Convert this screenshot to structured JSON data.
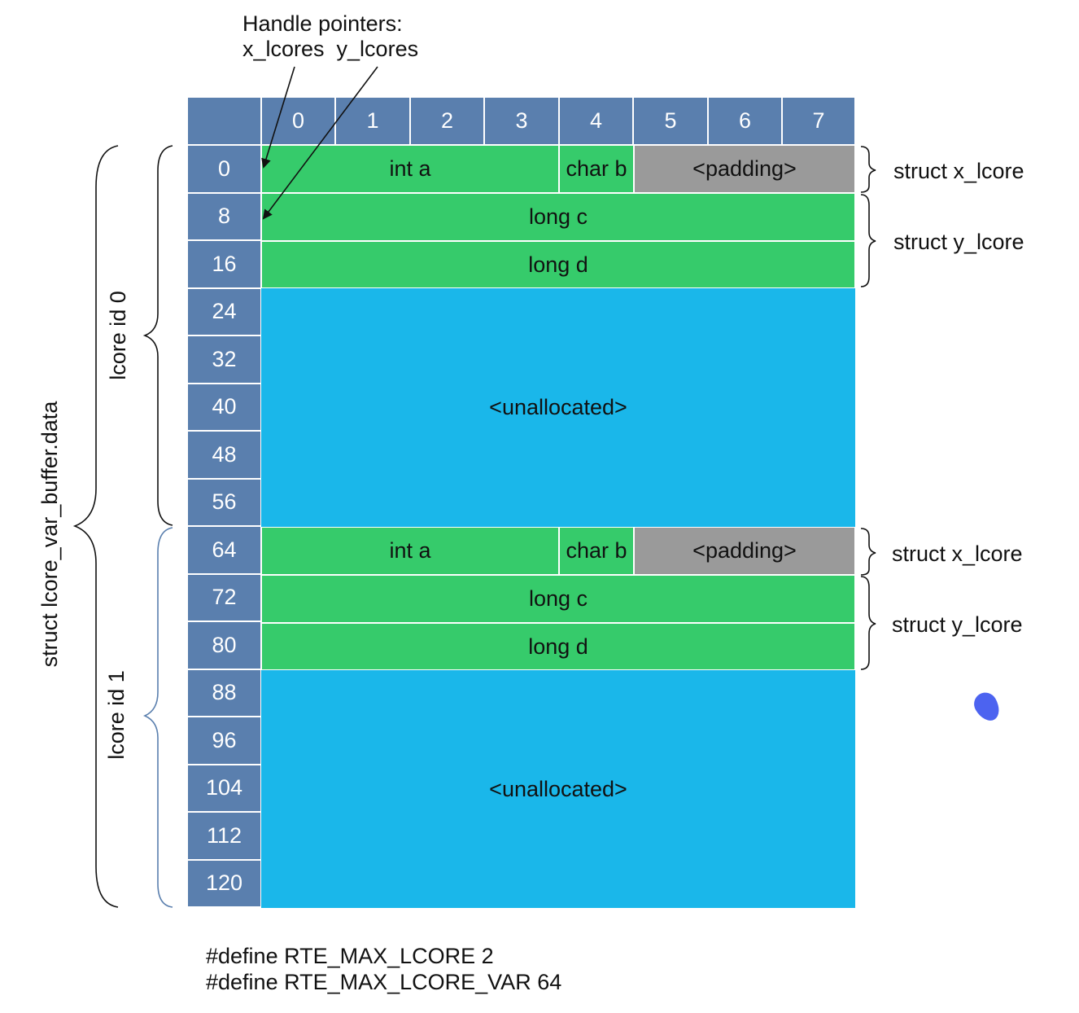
{
  "pointer_title": "Handle pointers:",
  "pointer_names": "x_lcores  y_lcores",
  "columns": [
    "0",
    "1",
    "2",
    "3",
    "4",
    "5",
    "6",
    "7"
  ],
  "rows": [
    "0",
    "8",
    "16",
    "24",
    "32",
    "40",
    "48",
    "56",
    "64",
    "72",
    "80",
    "88",
    "96",
    "104",
    "112",
    "120"
  ],
  "lcore0": {
    "int_a": "int a",
    "char_b": "char b",
    "padding": "<padding>",
    "long_c": "long c",
    "long_d": "long d",
    "unallocated": "<unallocated>",
    "struct_x": "struct x_lcore",
    "struct_y": "struct y_lcore",
    "label": "lcore id 0"
  },
  "lcore1": {
    "int_a": "int a",
    "char_b": "char b",
    "padding": "<padding>",
    "long_c": "long c",
    "long_d": "long d",
    "unallocated": "<unallocated>",
    "struct_x": "struct x_lcore",
    "struct_y": "struct y_lcore",
    "label": "lcore id 1"
  },
  "buffer_label": "struct lcore_var_buffer.data",
  "defines": [
    "#define RTE_MAX_LCORE 2",
    "#define RTE_MAX_LCORE_VAR 64"
  ],
  "colors": {
    "header": "#5a7fae",
    "allocated": "#36cb6b",
    "padding": "#9a9a9a",
    "unallocated": "#1ab7ea"
  }
}
